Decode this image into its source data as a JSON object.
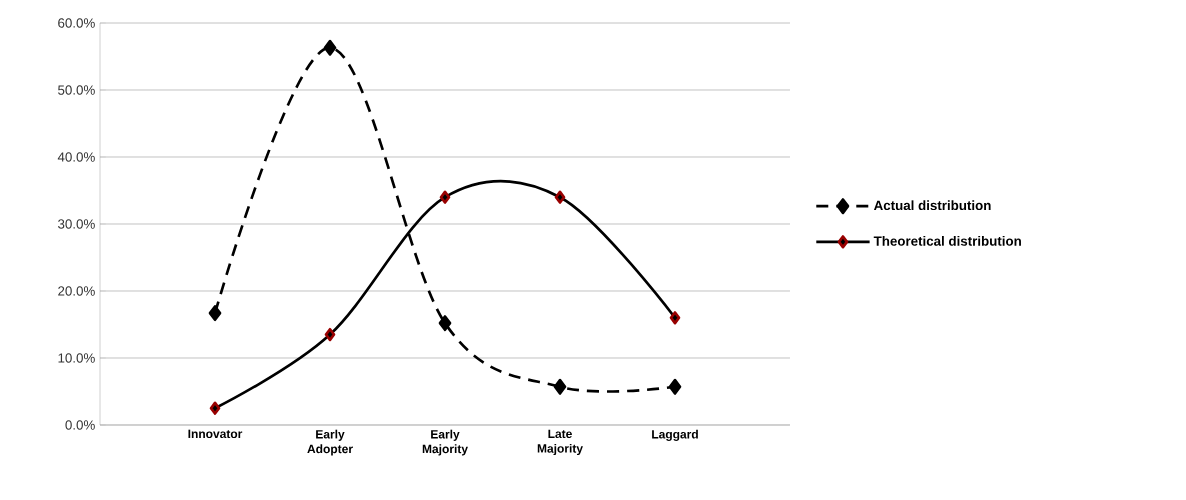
{
  "chart_data": {
    "type": "line",
    "categories": [
      "Innovator",
      "Early Adopter",
      "Early Majority",
      "Late Majority",
      "Laggard"
    ],
    "series": [
      {
        "name": "Actual distribution",
        "color": "#000000",
        "values": [
          16.7,
          56.3,
          15.2,
          5.7,
          5.7
        ],
        "line_style": "dashed"
      },
      {
        "name": "Theoretical distribution",
        "color": "#000000",
        "values": [
          2.5,
          13.5,
          34,
          34,
          16
        ],
        "line_style": "solid"
      }
    ],
    "ylim": [
      0,
      60
    ],
    "yticks": [
      {
        "value": 0,
        "label": "0.0%"
      },
      {
        "value": 10,
        "label": "10.0%"
      },
      {
        "value": 20,
        "label": "20.0%"
      },
      {
        "value": 30,
        "label": "30.0%"
      },
      {
        "value": 40,
        "label": "40.0%"
      },
      {
        "value": 50,
        "label": "50.0%"
      },
      {
        "value": 60,
        "label": "60.0%"
      }
    ],
    "grid": "y",
    "legend": "right",
    "marker": "diamond"
  }
}
